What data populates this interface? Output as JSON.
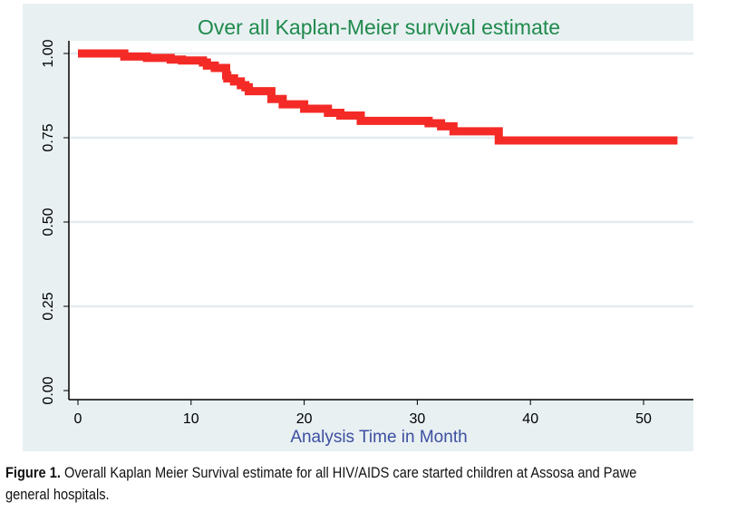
{
  "chart_data": {
    "type": "line",
    "title": "Over all Kaplan-Meier survival estimate",
    "xlabel": "Analysis Time in Month",
    "ylabel": "",
    "xlim": [
      0,
      53
    ],
    "ylim": [
      0,
      1
    ],
    "xticks": [
      "0",
      "10",
      "20",
      "30",
      "40",
      "50"
    ],
    "xtick_values": [
      0,
      10,
      20,
      30,
      40,
      50
    ],
    "yticks": [
      "0.00",
      "0.25",
      "0.50",
      "0.75",
      "1.00"
    ],
    "ytick_values": [
      0,
      0.25,
      0.5,
      0.75,
      1.0
    ],
    "grid": true,
    "series": [
      {
        "name": "Kaplan-Meier survival estimate",
        "color": "#f42a26",
        "step": true,
        "points": [
          [
            0,
            1.0
          ],
          [
            4.1,
            0.991
          ],
          [
            6.1,
            0.987
          ],
          [
            8.2,
            0.982
          ],
          [
            9.2,
            0.979
          ],
          [
            11.05,
            0.973
          ],
          [
            11.4,
            0.964
          ],
          [
            12.1,
            0.957
          ],
          [
            13.1,
            0.935
          ],
          [
            13.2,
            0.926
          ],
          [
            13.8,
            0.917
          ],
          [
            14.4,
            0.906
          ],
          [
            14.8,
            0.9
          ],
          [
            15.1,
            0.888
          ],
          [
            17.1,
            0.865
          ],
          [
            18.1,
            0.849
          ],
          [
            20.0,
            0.836
          ],
          [
            22.1,
            0.824
          ],
          [
            23.2,
            0.816
          ],
          [
            25.0,
            0.8
          ],
          [
            31.0,
            0.793
          ],
          [
            32.1,
            0.784
          ],
          [
            33.2,
            0.769
          ],
          [
            37.2,
            0.742
          ],
          [
            53.0,
            0.742
          ]
        ]
      }
    ]
  },
  "caption": {
    "label": "Figure 1.",
    "text": " Overall Kaplan Meier Survival estimate for all HIV/AIDS care started children at Assosa and Pawe",
    "text2": "general hospitals."
  },
  "colors": {
    "panel": "#e8f0f2",
    "title": "#1f8a4c",
    "xlabel": "#3d4fa0",
    "grid": "#e3ecef"
  }
}
